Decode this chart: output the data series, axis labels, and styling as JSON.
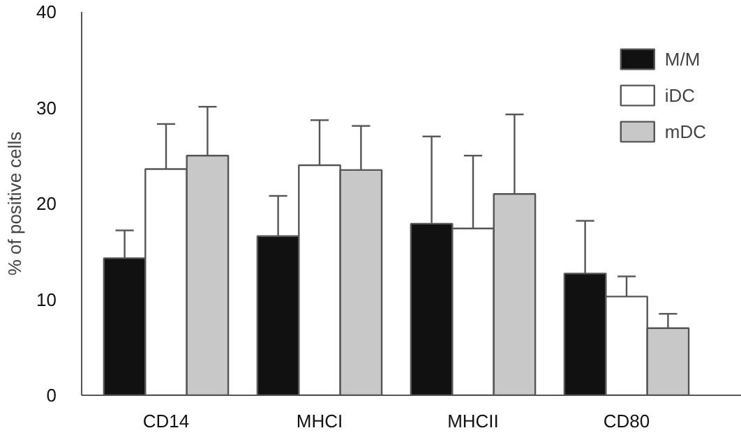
{
  "chart_data": {
    "type": "bar",
    "ylabel": "% of positive cells",
    "categories": [
      "CD14",
      "MHCI",
      "MHCII",
      "CD80"
    ],
    "series": [
      {
        "name": "M/M",
        "color": "#111111",
        "values": [
          14.3,
          16.6,
          17.9,
          12.7
        ],
        "errors": [
          [
            14.3,
            17.2
          ],
          [
            16.6,
            20.8
          ],
          [
            17.9,
            27.0
          ],
          [
            12.7,
            18.2
          ]
        ]
      },
      {
        "name": "iDC",
        "color": "#ffffff",
        "values": [
          23.6,
          24.0,
          17.4,
          10.3
        ],
        "errors": [
          [
            23.6,
            28.3
          ],
          [
            24.0,
            28.7
          ],
          [
            17.4,
            25.0
          ],
          [
            10.3,
            12.4
          ]
        ]
      },
      {
        "name": "mDC",
        "color": "#c8c8c8",
        "values": [
          25.0,
          23.5,
          21.0,
          7.0
        ],
        "errors": [
          [
            25.0,
            30.1
          ],
          [
            23.5,
            28.1
          ],
          [
            21.0,
            29.3
          ],
          [
            7.0,
            8.5
          ]
        ]
      }
    ],
    "ylim": [
      0,
      40
    ],
    "yticks": [
      0,
      10,
      20,
      30,
      40
    ],
    "grid": false,
    "legend": "top right"
  }
}
